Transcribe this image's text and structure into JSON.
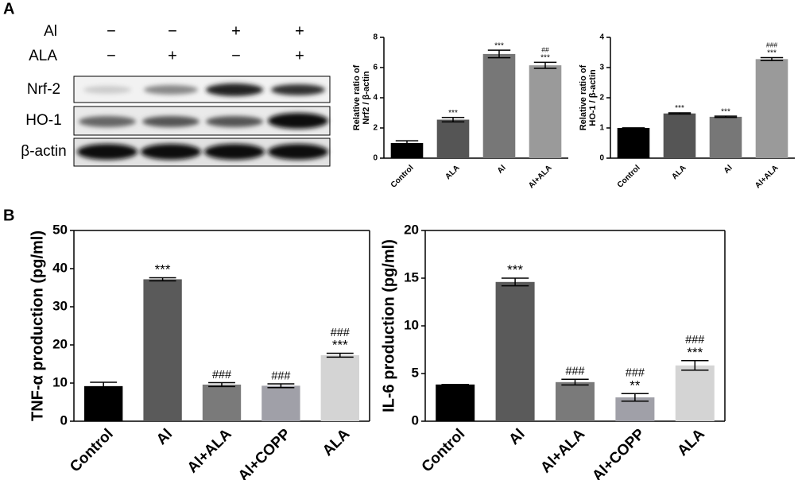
{
  "panels": {
    "a": "A",
    "b": "B"
  },
  "blot": {
    "rows": [
      "Al",
      "ALA"
    ],
    "signs": [
      [
        "−",
        "−",
        "+",
        "+"
      ],
      [
        "−",
        "+",
        "−",
        "+"
      ]
    ],
    "bands": [
      "Nrf-2",
      "HO-1",
      "β-actin"
    ]
  },
  "chart_data": [
    {
      "type": "bar",
      "categories": [
        "Control",
        "ALA",
        "Al",
        "Al+ALA"
      ],
      "values": [
        1.0,
        2.55,
        6.9,
        6.15
      ],
      "errors": [
        0.15,
        0.15,
        0.25,
        0.2
      ],
      "colors": [
        "#000000",
        "#555555",
        "#777777",
        "#9a9a9a"
      ],
      "ylabel": [
        "Relative ratio of",
        "Nrf2 / β-actin"
      ],
      "ylim": [
        0,
        8
      ],
      "yticks": [
        0,
        2,
        4,
        6,
        8
      ],
      "annotations": [
        null,
        [
          "***"
        ],
        [
          "***"
        ],
        [
          "##",
          "***"
        ]
      ]
    },
    {
      "type": "bar",
      "categories": [
        "Control",
        "ALA",
        "Al",
        "Al+ALA"
      ],
      "values": [
        1.0,
        1.48,
        1.37,
        3.28
      ],
      "errors": [
        0,
        0.02,
        0.02,
        0.05
      ],
      "colors": [
        "#000000",
        "#555555",
        "#777777",
        "#9a9a9a"
      ],
      "ylabel": [
        "Relative ratio of",
        "HO-1 / β-actin"
      ],
      "ylim": [
        0,
        4
      ],
      "yticks": [
        0,
        1,
        2,
        3,
        4
      ],
      "annotations": [
        null,
        [
          "***"
        ],
        [
          "***"
        ],
        [
          "###",
          "***"
        ]
      ]
    },
    {
      "type": "bar",
      "categories": [
        "Control",
        "Al",
        "Al+ALA",
        "Al+COPP",
        "ALA"
      ],
      "values": [
        9.2,
        37.2,
        9.6,
        9.3,
        17.3
      ],
      "errors": [
        1.0,
        0.4,
        0.5,
        0.5,
        0.5
      ],
      "colors": [
        "#000000",
        "#5a5a5a",
        "#7a7a7a",
        "#a0a0a8",
        "#d4d4d4"
      ],
      "ylabel": "TNF-α production (pg/ml)",
      "ylim": [
        0,
        50
      ],
      "yticks": [
        0,
        10,
        20,
        30,
        40,
        50
      ],
      "annotations": [
        null,
        [
          "***"
        ],
        [
          "###"
        ],
        [
          "###"
        ],
        [
          "###",
          "***"
        ]
      ]
    },
    {
      "type": "bar",
      "categories": [
        "Control",
        "Al",
        "Al+ALA",
        "Al+COPP",
        "ALA"
      ],
      "values": [
        3.85,
        14.6,
        4.1,
        2.5,
        5.85
      ],
      "errors": [
        0,
        0.4,
        0.3,
        0.4,
        0.5
      ],
      "colors": [
        "#000000",
        "#5a5a5a",
        "#7a7a7a",
        "#a0a0a8",
        "#d4d4d4"
      ],
      "ylabel": "IL-6 production (pg/ml)",
      "ylim": [
        0,
        20
      ],
      "yticks": [
        0,
        5,
        10,
        15,
        20
      ],
      "annotations": [
        null,
        [
          "***"
        ],
        [
          "###"
        ],
        [
          "###",
          "**"
        ],
        [
          "###",
          "***"
        ]
      ]
    }
  ]
}
